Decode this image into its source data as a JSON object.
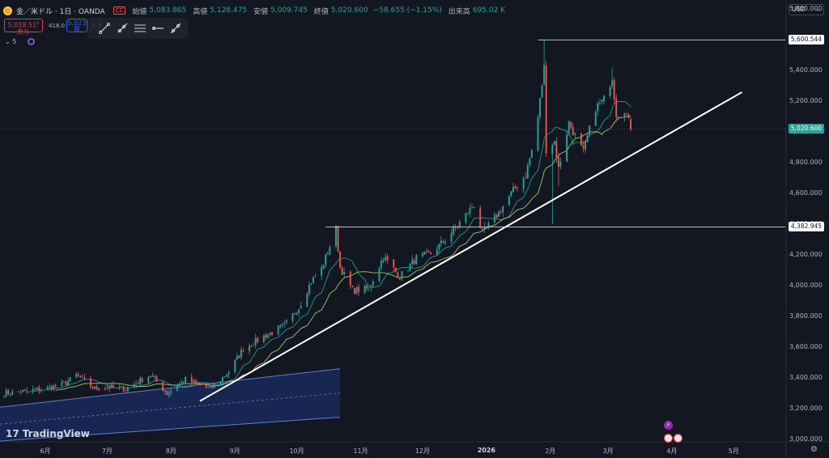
{
  "header": {
    "symbol": "金／米ドル · 1日 · OANDA",
    "market_flag": "CC",
    "ohlc": [
      {
        "label": "始値",
        "value": "5,083.865"
      },
      {
        "label": "高値",
        "value": "5,128.475"
      },
      {
        "label": "安値",
        "value": "5,009.745"
      },
      {
        "label": "終値",
        "value": "5,020.600"
      }
    ],
    "change": "−58.655 (−1.15%)",
    "volume_label": "出来高",
    "volume_value": "695.02 K"
  },
  "trade": {
    "sell_price": "5,018.51",
    "sell_sup": "5",
    "sell_label": "売り",
    "spread": "418.0",
    "buy_price": "5,023",
    "buy_label": "買"
  },
  "toolbar": {
    "tools": [
      "trend-line-tool",
      "ray-tool",
      "parallel-channel-tool",
      "horizontal-ray-tool",
      "extended-line-tool"
    ]
  },
  "indicator_row": {
    "collapse_count": "5"
  },
  "currency": "USD",
  "price_tags": {
    "resistance_top": "5,600.544",
    "current": "5,020.600",
    "support": "4,382.945"
  },
  "logo": {
    "mark": "17",
    "name": "TradingView"
  },
  "colors": {
    "up": "#26a69a",
    "down": "#ef5350",
    "ma_fast": "#26a69a",
    "ma_slow": "#b5d96a",
    "background": "#131722"
  },
  "chart_data": {
    "type": "candlestick",
    "currency": "USD",
    "y_ticks": [
      "5,800.000",
      "5,600.000",
      "5,400.000",
      "5,200.000",
      "5,000.000",
      "4,800.000",
      "4,600.000",
      "4,400.000",
      "4,200.000",
      "4,000.000",
      "3,800.000",
      "3,600.000",
      "3,400.000",
      "3,200.000",
      "3,000.000"
    ],
    "y_tick_values": [
      5800,
      5600,
      5400,
      5200,
      5000,
      4800,
      4600,
      4400,
      4200,
      4000,
      3800,
      3600,
      3400,
      3200,
      3000
    ],
    "ylim": [
      2990,
      5860
    ],
    "x_ticks": [
      {
        "label": "6月",
        "date": "2025-06-01"
      },
      {
        "label": "7月",
        "date": "2025-07-01"
      },
      {
        "label": "8月",
        "date": "2025-08-01"
      },
      {
        "label": "9月",
        "date": "2025-09-01"
      },
      {
        "label": "10月",
        "date": "2025-10-01"
      },
      {
        "label": "11月",
        "date": "2025-11-01"
      },
      {
        "label": "12月",
        "date": "2025-12-01"
      },
      {
        "label": "2026",
        "date": "2026-01-01"
      },
      {
        "label": "2月",
        "date": "2026-02-01"
      },
      {
        "label": "3月",
        "date": "2026-03-01"
      },
      {
        "label": "4月",
        "date": "2026-04-01"
      },
      {
        "label": "5月",
        "date": "2026-05-01"
      }
    ],
    "xlim": [
      "2025-05-10",
      "2026-05-26"
    ],
    "last_date": "2026-03-12",
    "close_path": [
      [
        "2025-05-10",
        3300
      ],
      [
        "2025-05-20",
        3310
      ],
      [
        "2025-06-01",
        3330
      ],
      [
        "2025-06-10",
        3360
      ],
      [
        "2025-06-16",
        3420
      ],
      [
        "2025-06-25",
        3330
      ],
      [
        "2025-07-01",
        3340
      ],
      [
        "2025-07-10",
        3330
      ],
      [
        "2025-07-22",
        3420
      ],
      [
        "2025-07-30",
        3300
      ],
      [
        "2025-08-08",
        3390
      ],
      [
        "2025-08-20",
        3330
      ],
      [
        "2025-08-29",
        3440
      ],
      [
        "2025-09-05",
        3590
      ],
      [
        "2025-09-15",
        3670
      ],
      [
        "2025-09-25",
        3740
      ],
      [
        "2025-10-02",
        3860
      ],
      [
        "2025-10-08",
        4030
      ],
      [
        "2025-10-13",
        4110
      ],
      [
        "2025-10-20",
        4370
      ],
      [
        "2025-10-22",
        4120
      ],
      [
        "2025-10-28",
        3970
      ],
      [
        "2025-11-05",
        3980
      ],
      [
        "2025-11-12",
        4190
      ],
      [
        "2025-11-20",
        4060
      ],
      [
        "2025-11-28",
        4180
      ],
      [
        "2025-12-05",
        4210
      ],
      [
        "2025-12-12",
        4300
      ],
      [
        "2025-12-22",
        4460
      ],
      [
        "2025-12-26",
        4530
      ],
      [
        "2025-12-30",
        4340
      ],
      [
        "2026-01-05",
        4440
      ],
      [
        "2026-01-13",
        4600
      ],
      [
        "2026-01-20",
        4720
      ],
      [
        "2026-01-25",
        4990
      ],
      [
        "2026-01-29",
        5420
      ],
      [
        "2026-01-30",
        4890
      ],
      [
        "2026-02-03",
        4940
      ],
      [
        "2026-02-05",
        4760
      ],
      [
        "2026-02-10",
        5060
      ],
      [
        "2026-02-17",
        4870
      ],
      [
        "2026-02-23",
        5160
      ],
      [
        "2026-02-27",
        5210
      ],
      [
        "2026-03-03",
        5360
      ],
      [
        "2026-03-05",
        5120
      ],
      [
        "2026-03-09",
        5150
      ],
      [
        "2026-03-12",
        5021
      ]
    ],
    "moving_averages": [
      {
        "window": 10,
        "color": "#26a69a"
      },
      {
        "window": 20,
        "color": "#b5d96a"
      }
    ],
    "horizontal_rays": [
      {
        "price": 5600.544,
        "from": "2026-01-26"
      },
      {
        "price": 4382.945,
        "from": "2025-10-15"
      }
    ],
    "trend_line": [
      [
        "2025-08-15",
        3250
      ],
      [
        "2026-05-05",
        5260
      ]
    ],
    "channel": {
      "from": "2025-05-10",
      "to": "2025-10-22",
      "upper": [
        3210,
        3460
      ],
      "lower": [
        2990,
        3145
      ]
    },
    "last_close": 5020.6
  }
}
